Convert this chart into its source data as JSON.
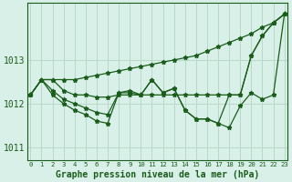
{
  "hours": [
    0,
    1,
    2,
    3,
    4,
    5,
    6,
    7,
    8,
    9,
    10,
    11,
    12,
    13,
    14,
    15,
    16,
    17,
    18,
    19,
    20,
    21,
    22,
    23
  ],
  "line_top": [
    1012.2,
    1012.55,
    1012.55,
    1012.55,
    1012.55,
    1012.6,
    1012.65,
    1012.7,
    1012.75,
    1012.8,
    1012.85,
    1012.9,
    1012.95,
    1013.0,
    1013.05,
    1013.1,
    1013.2,
    1013.3,
    1013.4,
    1013.5,
    1013.6,
    1013.75,
    1013.85,
    1014.05
  ],
  "line_flat": [
    1012.2,
    1012.55,
    1012.55,
    1012.3,
    1012.2,
    1012.2,
    1012.15,
    1012.15,
    1012.2,
    1012.2,
    1012.2,
    1012.2,
    1012.2,
    1012.2,
    1012.2,
    1012.2,
    1012.2,
    1012.2,
    1012.2,
    1012.2,
    1013.1,
    1013.55,
    1013.85,
    1014.05
  ],
  "line_mid": [
    1012.2,
    1012.55,
    1012.3,
    1012.1,
    1012.0,
    1011.9,
    1011.8,
    1011.75,
    1012.25,
    1012.3,
    1012.2,
    1012.55,
    1012.25,
    1012.35,
    1011.85,
    1011.65,
    1011.65,
    1011.55,
    1012.2,
    1012.2,
    1013.1,
    1013.55,
    1013.85,
    1014.05
  ],
  "line_low": [
    1012.2,
    1012.55,
    1012.2,
    1012.0,
    1011.85,
    1011.75,
    1011.6,
    1011.55,
    1012.25,
    1012.25,
    1012.2,
    1012.55,
    1012.25,
    1012.35,
    1011.85,
    1011.65,
    1011.65,
    1011.55,
    1011.45,
    1011.95,
    1012.25,
    1012.1,
    1012.2,
    1014.05
  ],
  "line_color": "#1a5c1a",
  "bg_color": "#d8f0e8",
  "grid_color": "#b8d8c8",
  "yticks": [
    1011,
    1012,
    1013
  ],
  "ylim": [
    1010.7,
    1014.3
  ],
  "xlim": [
    -0.3,
    23.3
  ],
  "xlabel": "Graphe pression niveau de la mer (hPa)"
}
